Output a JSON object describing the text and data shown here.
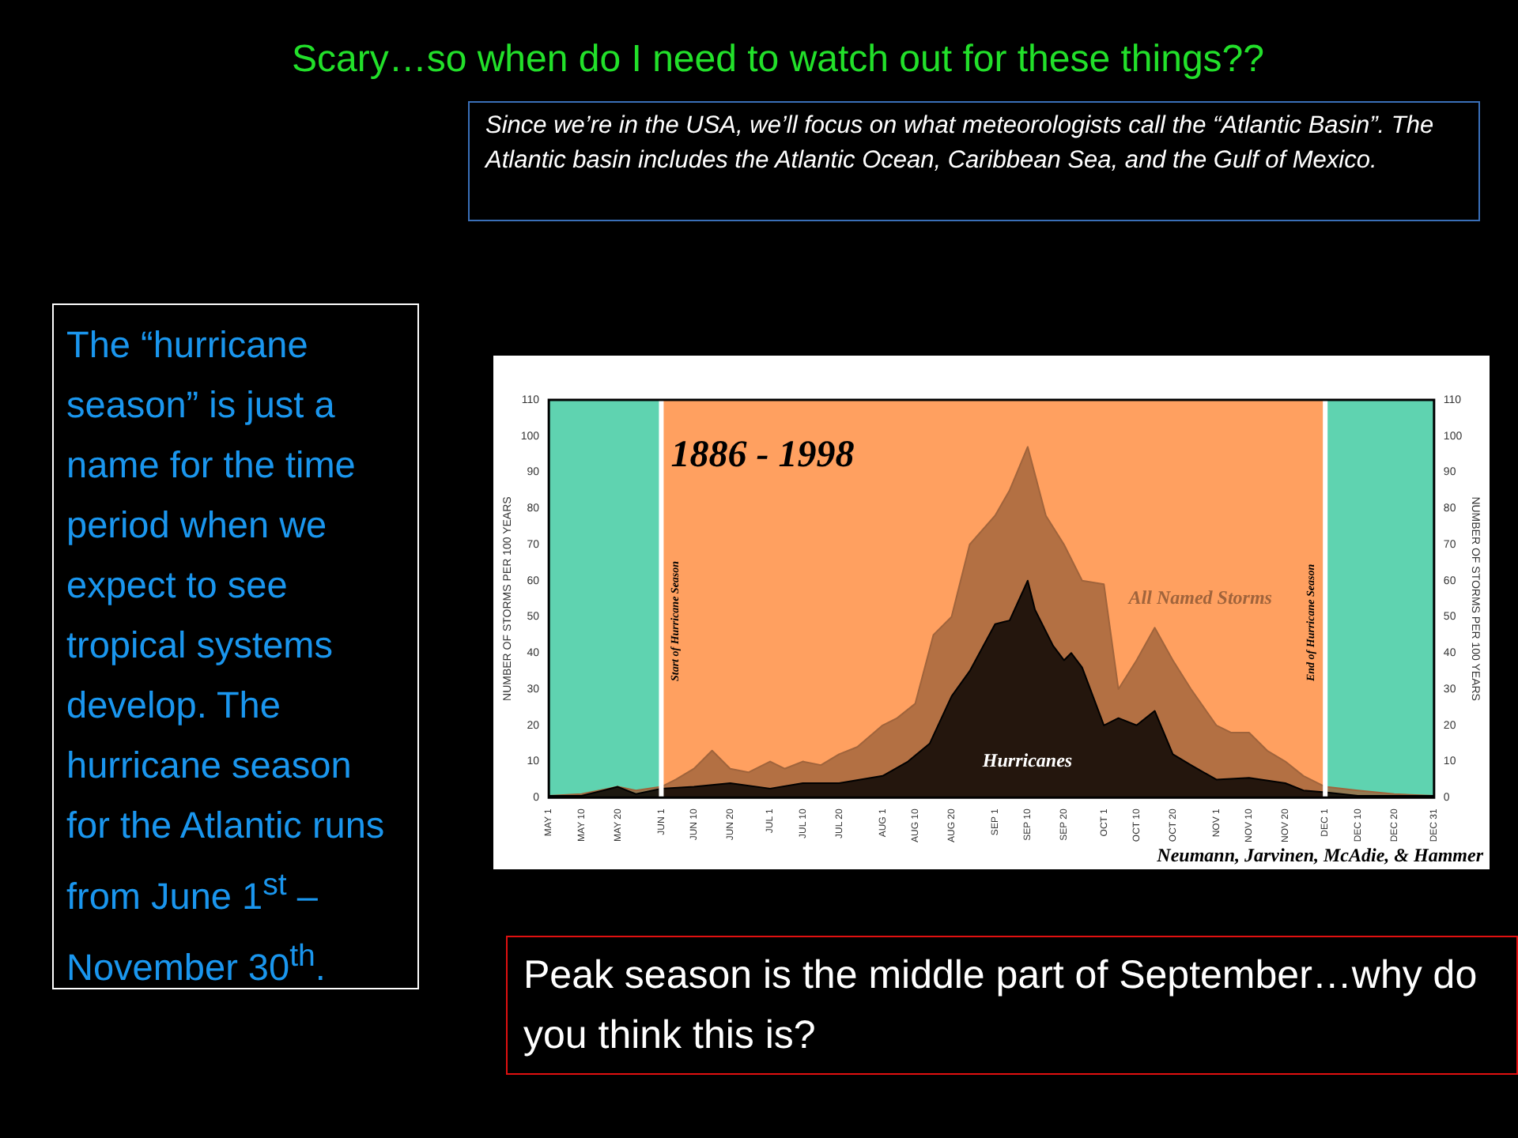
{
  "chart_data": {
    "type": "area",
    "title": "Scary…so when do I need to watch out for these things??",
    "ylabel": "NUMBER OF STORMS PER 100 YEARS",
    "y2label": "NUMBER OF STORMS PER 100 YEARS",
    "annotations": [
      "Since we’re in the USA, we’ll focus on what meteorologists call the “Atlantic Basin”. The Atlantic basin includes the Atlantic Ocean, Caribbean Sea, and the Gulf of Mexico.",
      "The “hurricane season” is just a name for the time period when we expect to see tropical systems develop.  The hurricane season for the Atlantic runs from June 1$^{st}$ – November 30$^{th}$.",
      "1886 - 1998",
      "Neumann, Jarvinen, McAdie, & Hammer",
      "Peak season is the middle part of September…why do you think this is?"
    ],
    "series": [
      {
        "name": "All Named Storms",
        "color": "#a0643c",
        "x": [
          "--05-01",
          "--05-10",
          "--05-20",
          "--05-25",
          "--06-01",
          "--06-05",
          "--06-10",
          "--06-15",
          "--06-20",
          "--06-25",
          "--07-01",
          "--07-05",
          "--07-10",
          "--07-15",
          "--07-20",
          "--07-25",
          "--08-01",
          "--08-05",
          "--08-10",
          "--08-15",
          "--08-20",
          "--08-25",
          "--09-01",
          "--09-05",
          "--09-10",
          "--09-15",
          "--09-20",
          "--09-25",
          "--10-01",
          "--10-05",
          "--10-10",
          "--10-15",
          "--10-20",
          "--10-25",
          "--11-01",
          "--11-05",
          "--11-10",
          "--11-15",
          "--11-20",
          "--11-25",
          "--12-01",
          "--12-10",
          "--12-20",
          "--12-31"
        ],
        "values": [
          0.5,
          1,
          3,
          2,
          3,
          5,
          8,
          13,
          8,
          7,
          10,
          8,
          10,
          9,
          12,
          14,
          20,
          22,
          26,
          45,
          50,
          70,
          78,
          85,
          97,
          78,
          70,
          60,
          59,
          30,
          38,
          47,
          38,
          30,
          20,
          18,
          18,
          13,
          10,
          6,
          3,
          2,
          1,
          0.5
        ]
      },
      {
        "name": "Hurricanes",
        "color": "#000000",
        "x": [
          "--05-01",
          "--05-10",
          "--05-20",
          "--05-25",
          "--06-01",
          "--06-10",
          "--06-20",
          "--07-01",
          "--07-10",
          "--07-20",
          "--08-01",
          "--08-08",
          "--08-14",
          "--08-20",
          "--08-25",
          "--09-01",
          "--09-05",
          "--09-10",
          "--09-12",
          "--09-15",
          "--09-17",
          "--09-20",
          "--09-22",
          "--09-25",
          "--10-01",
          "--10-05",
          "--10-10",
          "--10-15",
          "--10-20",
          "--10-25",
          "--11-01",
          "--11-10",
          "--11-20",
          "--11-25",
          "--12-01",
          "--12-10",
          "--12-20",
          "--12-31"
        ],
        "values": [
          0.5,
          0.5,
          3,
          1,
          2.5,
          3,
          4,
          2.5,
          4,
          4,
          6,
          10,
          15,
          28,
          35,
          48,
          49,
          60,
          52,
          46,
          42,
          38,
          40,
          36,
          20,
          22,
          20,
          24,
          12,
          9,
          5,
          5.5,
          4,
          2,
          1.5,
          0.5,
          0.5,
          0.5
        ]
      }
    ],
    "xlim": [
      "--05-01",
      "--12-31"
    ],
    "xticks": [
      {
        "value": "--05-01",
        "label": "MAY 1"
      },
      {
        "value": "--05-10",
        "label": "MAY 10"
      },
      {
        "value": "--05-20",
        "label": "MAY 20"
      },
      {
        "value": "--06-01",
        "label": "JUN 1"
      },
      {
        "value": "--06-10",
        "label": "JUN 10"
      },
      {
        "value": "--06-20",
        "label": "JUN 20"
      },
      {
        "value": "--07-01",
        "label": "JUL 1"
      },
      {
        "value": "--07-10",
        "label": "JUL 10"
      },
      {
        "value": "--07-20",
        "label": "JUL 20"
      },
      {
        "value": "--08-01",
        "label": "AUG 1"
      },
      {
        "value": "--08-10",
        "label": "AUG 10"
      },
      {
        "value": "--08-20",
        "label": "AUG 20"
      },
      {
        "value": "--09-01",
        "label": "SEP 1"
      },
      {
        "value": "--09-10",
        "label": "SEP 10"
      },
      {
        "value": "--09-20",
        "label": "SEP 20"
      },
      {
        "value": "--10-01",
        "label": "OCT 1"
      },
      {
        "value": "--10-10",
        "label": "OCT 10"
      },
      {
        "value": "--10-20",
        "label": "OCT 20"
      },
      {
        "value": "--11-01",
        "label": "NOV 1"
      },
      {
        "value": "--11-10",
        "label": "NOV 10"
      },
      {
        "value": "--11-20",
        "label": "NOV 20"
      },
      {
        "value": "--12-01",
        "label": "DEC 1"
      },
      {
        "value": "--12-10",
        "label": "DEC 10"
      },
      {
        "value": "--12-20",
        "label": "DEC 20"
      },
      {
        "value": "--12-31",
        "label": "DEC 31"
      }
    ],
    "ylim": [
      0,
      110
    ],
    "yticks": [
      0,
      10,
      20,
      30,
      40,
      50,
      60,
      70,
      80,
      90,
      100,
      110
    ],
    "y2lim": [
      0,
      110
    ],
    "y2ticks": [
      0,
      10,
      20,
      30,
      40,
      50,
      60,
      70,
      80,
      90,
      100,
      110
    ],
    "bands": [
      {
        "axis": "x",
        "from": "--05-01",
        "to": "--06-01",
        "color": "#5fd3b0"
      },
      {
        "axis": "x",
        "from": "--06-01",
        "to": "--12-01",
        "color": "#ffa060"
      },
      {
        "axis": "x",
        "from": "--12-01",
        "to": "--12-31",
        "color": "#5fd3b0"
      }
    ],
    "ref_lines": [
      {
        "axis": "x",
        "value": "--06-01",
        "label": "Start of Hurricane Season",
        "color": "#ffffff"
      },
      {
        "axis": "x",
        "value": "--12-01",
        "label": "End of Hurricane Season",
        "color": "#ffffff"
      }
    ],
    "grid": false,
    "legend": false
  }
}
